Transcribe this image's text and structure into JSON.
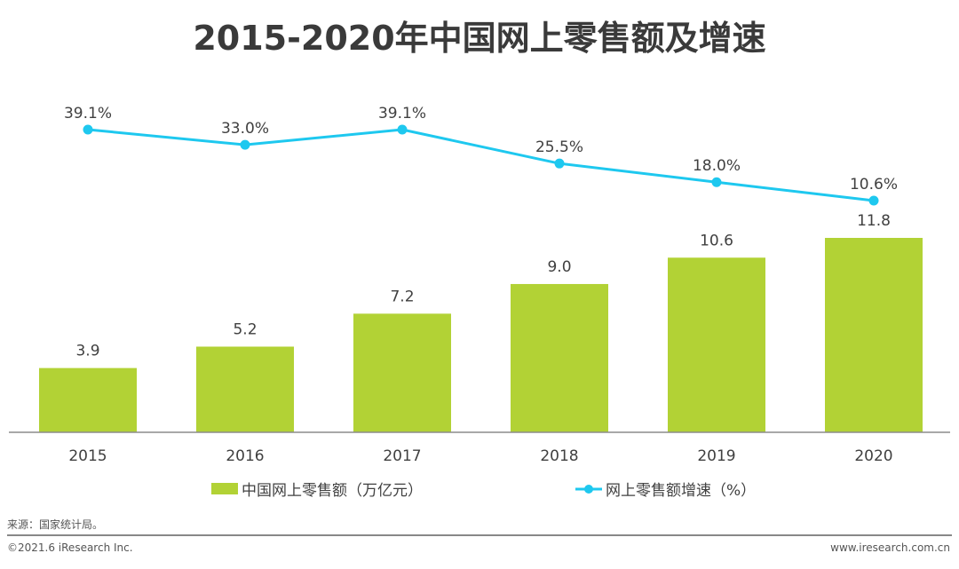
{
  "chart_data": {
    "type": "bar+line",
    "title": "2015-2020年中国网上零售额及增速",
    "categories": [
      "2015",
      "2016",
      "2017",
      "2018",
      "2019",
      "2020"
    ],
    "series": [
      {
        "name": "中国网上零售额（万亿元）",
        "type": "bar",
        "color": "#b2d235",
        "values": [
          3.9,
          5.2,
          7.2,
          9.0,
          10.6,
          11.8
        ],
        "labels": [
          "3.9",
          "5.2",
          "7.2",
          "9.0",
          "10.6",
          "11.8"
        ]
      },
      {
        "name": "网上零售额增速（%）",
        "type": "line",
        "color": "#1ec8ef",
        "values": [
          39.1,
          33.0,
          39.1,
          25.5,
          18.0,
          10.6
        ],
        "labels": [
          "39.1%",
          "33.0%",
          "39.1%",
          "25.5%",
          "18.0%",
          "10.6%"
        ]
      }
    ],
    "legend": "bottom"
  },
  "footer": {
    "source": "来源：国家统计局。",
    "copyright": "©2021.6 iResearch Inc.",
    "site": "www.iresearch.com.cn"
  }
}
